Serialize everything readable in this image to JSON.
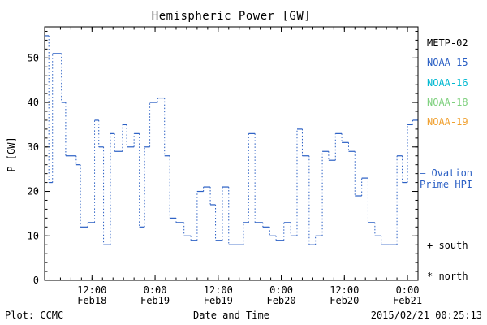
{
  "title": "Hemispheric Power [GW]",
  "footer": {
    "credit": "Plot: CCMC",
    "timestamp": "2015/02/21 00:25:13"
  },
  "legend": {
    "satellites": [
      {
        "label": "METP-02",
        "color": "#000000"
      },
      {
        "label": "NOAA-15",
        "color": "#2a5fc4"
      },
      {
        "label": "NOAA-16",
        "color": "#00b8d0"
      },
      {
        "label": "NOAA-18",
        "color": "#7ed07e"
      },
      {
        "label": "NOAA-19",
        "color": "#f0a030"
      }
    ],
    "model_line1": "– Ovation",
    "model_line2": "Prime HPI",
    "model_color": "#2a5fc4",
    "marker_south": "+ south",
    "marker_north": "* north"
  },
  "chart_data": {
    "type": "line",
    "line_style": "stepped-dotted",
    "color": "#2a5fc4",
    "title": "Hemispheric Power [GW]",
    "xlabel": "Date and Time",
    "ylabel": "P [GW]",
    "ylim": [
      0,
      57
    ],
    "yticks": [
      0,
      10,
      20,
      30,
      40,
      50
    ],
    "y_minor_step": 2,
    "xlim_hours": [
      3,
      74
    ],
    "x_minor_step": 2,
    "xticks": [
      {
        "hours": 12,
        "time": "12:00",
        "date": "Feb18"
      },
      {
        "hours": 24,
        "time": "0:00",
        "date": "Feb19"
      },
      {
        "hours": 36,
        "time": "12:00",
        "date": "Feb19"
      },
      {
        "hours": 48,
        "time": "0:00",
        "date": "Feb20"
      },
      {
        "hours": 60,
        "time": "12:00",
        "date": "Feb20"
      },
      {
        "hours": 72,
        "time": "0:00",
        "date": "Feb21"
      }
    ],
    "grid": false,
    "legend_position": "right",
    "series": [
      {
        "name": "Ovation Prime HPI",
        "points_format": [
          "hours_since_Feb18_0000",
          "P_GW"
        ],
        "points": [
          [
            3.0,
            55
          ],
          [
            3.8,
            22
          ],
          [
            4.5,
            51
          ],
          [
            6.2,
            40
          ],
          [
            7.0,
            28
          ],
          [
            9.0,
            26
          ],
          [
            9.8,
            12
          ],
          [
            11.2,
            13
          ],
          [
            12.5,
            36
          ],
          [
            13.3,
            30
          ],
          [
            14.2,
            8
          ],
          [
            15.5,
            33
          ],
          [
            16.3,
            29
          ],
          [
            17.8,
            35
          ],
          [
            18.6,
            30
          ],
          [
            20.0,
            33
          ],
          [
            21.0,
            12
          ],
          [
            22.0,
            30
          ],
          [
            23.0,
            40
          ],
          [
            24.5,
            41
          ],
          [
            25.8,
            28
          ],
          [
            26.8,
            14
          ],
          [
            28.0,
            13
          ],
          [
            29.5,
            10
          ],
          [
            30.8,
            9
          ],
          [
            32.0,
            20
          ],
          [
            33.2,
            21
          ],
          [
            34.5,
            17
          ],
          [
            35.5,
            9
          ],
          [
            36.8,
            21
          ],
          [
            38.0,
            8
          ],
          [
            39.5,
            8
          ],
          [
            40.8,
            13
          ],
          [
            41.8,
            33
          ],
          [
            43.0,
            13
          ],
          [
            44.5,
            12
          ],
          [
            45.8,
            10
          ],
          [
            47.0,
            9
          ],
          [
            48.5,
            13
          ],
          [
            49.8,
            10
          ],
          [
            51.0,
            34
          ],
          [
            52.0,
            28
          ],
          [
            53.3,
            8
          ],
          [
            54.5,
            10
          ],
          [
            55.8,
            29
          ],
          [
            57.0,
            27
          ],
          [
            58.3,
            33
          ],
          [
            59.5,
            31
          ],
          [
            60.8,
            29
          ],
          [
            62.0,
            19
          ],
          [
            63.3,
            23
          ],
          [
            64.5,
            13
          ],
          [
            65.8,
            10
          ],
          [
            67.0,
            8
          ],
          [
            68.5,
            8
          ],
          [
            70.0,
            28
          ],
          [
            71.0,
            22
          ],
          [
            72.0,
            35
          ],
          [
            73.0,
            36
          ]
        ]
      }
    ]
  }
}
